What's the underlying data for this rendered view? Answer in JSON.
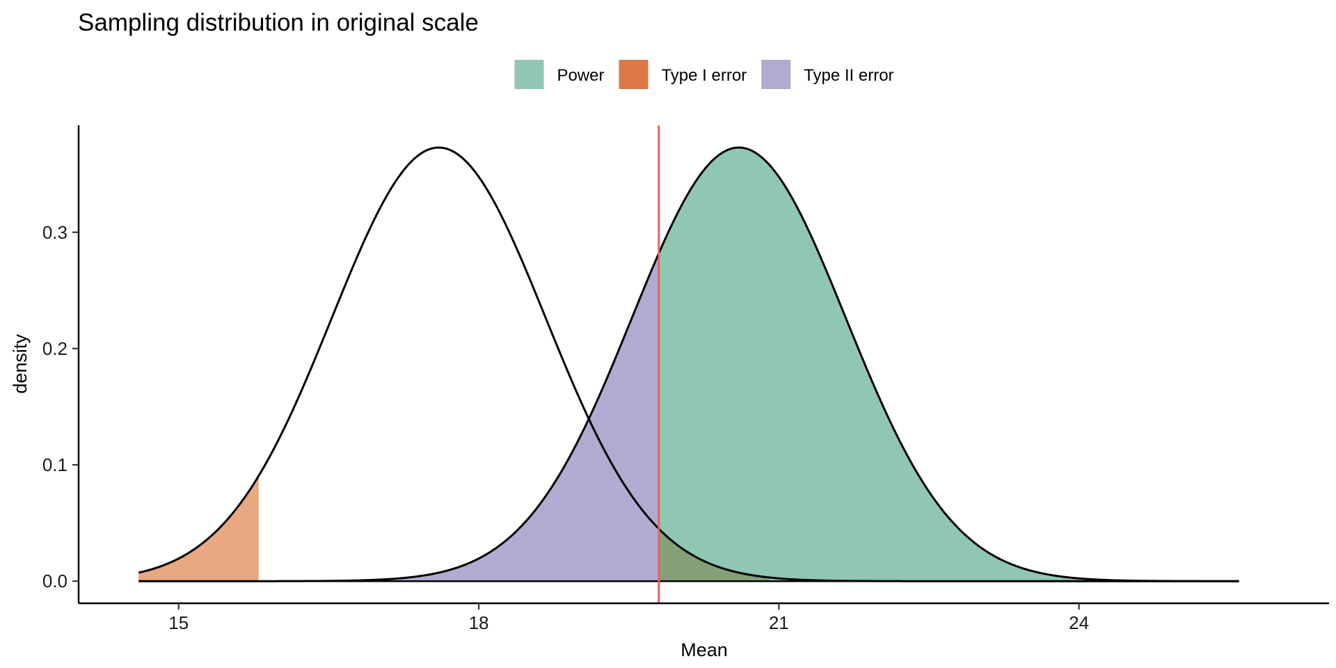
{
  "chart_data": {
    "type": "area",
    "title": "Sampling distribution in original scale",
    "xlabel": "Mean",
    "ylabel": "density",
    "xlim": [
      14.0,
      26.5
    ],
    "ylim": [
      -0.019,
      0.392
    ],
    "x_ticks": [
      15,
      18,
      21,
      24
    ],
    "x_tick_labels": [
      "15",
      "18",
      "21",
      "24"
    ],
    "y_ticks": [
      0.0,
      0.1,
      0.2,
      0.3
    ],
    "y_tick_labels": [
      "0.0",
      "0.1",
      "0.2",
      "0.3"
    ],
    "grid": false,
    "legend_position": "top",
    "legend": [
      {
        "label": "Power",
        "color": "#8FC7B2"
      },
      {
        "label": "Type I error",
        "color": "#DC7845"
      },
      {
        "label": "Type II error",
        "color": "#B1ABD2"
      }
    ],
    "distributions": [
      {
        "role": "null",
        "mean": 17.6,
        "sd": 1.07,
        "x_range": [
          14.6,
          25.6
        ],
        "line_color": "#000000"
      },
      {
        "role": "alternative",
        "mean": 20.6,
        "sd": 1.07,
        "x_range": [
          14.6,
          25.6
        ],
        "line_color": "#000000"
      }
    ],
    "critical_value": 19.8,
    "critical_line_color": "#E8625A",
    "shaded_regions": [
      {
        "label": "Type I error",
        "distribution": "null",
        "from": 14.6,
        "to": 15.8,
        "color": "#E8A882"
      },
      {
        "label": "Type II error",
        "distribution": "alternative",
        "from": 14.6,
        "to": 19.8,
        "color": "#B1ABD2"
      },
      {
        "label": "Power",
        "distribution": "alternative",
        "from": 19.8,
        "to": 25.6,
        "color": "#8FC7B2"
      },
      {
        "label": "Overlap",
        "distribution": "null",
        "from": 19.8,
        "to": 20.9,
        "color": "#83A078"
      }
    ]
  }
}
